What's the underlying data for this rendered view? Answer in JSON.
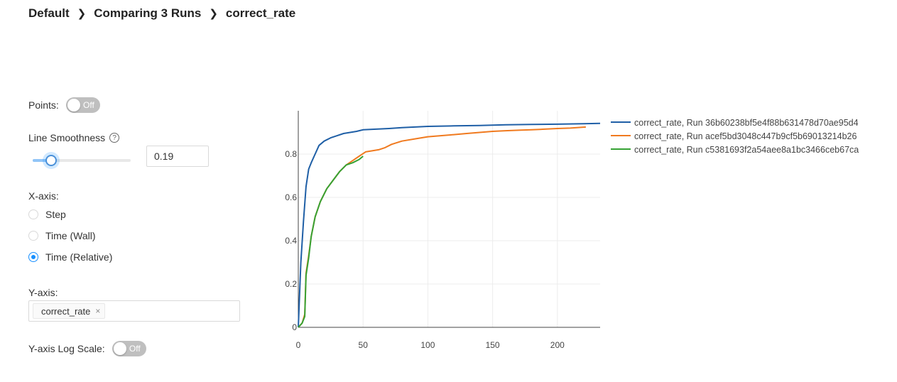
{
  "breadcrumb": {
    "items": [
      "Default",
      "Comparing 3 Runs",
      "correct_rate"
    ],
    "separator": ">"
  },
  "controls": {
    "points_label": "Points:",
    "points_toggle": "Off",
    "smoothness_label": "Line Smoothness",
    "smoothness_value": "0.19",
    "smoothness_fraction": 0.19,
    "xaxis_label": "X-axis:",
    "xaxis_options": [
      "Step",
      "Time (Wall)",
      "Time (Relative)"
    ],
    "xaxis_selected": "Time (Relative)",
    "yaxis_label": "Y-axis:",
    "yaxis_tag": "correct_rate",
    "yaxis_tag_close": "×",
    "logscale_label": "Y-axis Log Scale:",
    "logscale_toggle": "Off"
  },
  "icons": {
    "help": "?",
    "separator": "chevron-right-icon"
  },
  "colors": {
    "run1": "#1f5fa6",
    "run2": "#f07a1f",
    "run3": "#36a234",
    "accent": "#1890ff",
    "toggle_off": "#bfbfbf"
  },
  "chart_data": {
    "type": "line",
    "title": "",
    "xlabel": "",
    "ylabel": "",
    "xlim": [
      0,
      233
    ],
    "ylim": [
      0,
      1.0
    ],
    "x_ticks": [
      0,
      50,
      100,
      150,
      200
    ],
    "y_ticks": [
      0,
      0.2,
      0.4,
      0.6,
      0.8
    ],
    "y_tick_labels": [
      "0",
      "0.2",
      "0.4",
      "0.6",
      "0.8"
    ],
    "grid": true,
    "legend_position": "right",
    "series": [
      {
        "name": "correct_rate, Run 36b60238bf5e4f88b631478d70ae95d4",
        "color": "#1f5fa6",
        "x": [
          0,
          2,
          4,
          6,
          8,
          10,
          13,
          16,
          20,
          25,
          30,
          35,
          40,
          45,
          50,
          60,
          70,
          80,
          90,
          100,
          120,
          140,
          160,
          180,
          200,
          220,
          233
        ],
        "y": [
          0.0,
          0.3,
          0.49,
          0.65,
          0.73,
          0.76,
          0.8,
          0.84,
          0.86,
          0.875,
          0.885,
          0.895,
          0.9,
          0.905,
          0.912,
          0.915,
          0.918,
          0.922,
          0.925,
          0.928,
          0.93,
          0.932,
          0.935,
          0.937,
          0.938,
          0.94,
          0.942
        ]
      },
      {
        "name": "correct_rate, Run acef5bd3048c447b9cf5b69013214b26",
        "color": "#f07a1f",
        "x": [
          0,
          3,
          5,
          6,
          8,
          10,
          13,
          17,
          22,
          27,
          32,
          37,
          42,
          47,
          52,
          57,
          62,
          67,
          72,
          80,
          90,
          100,
          110,
          120,
          130,
          140,
          150,
          160,
          170,
          180,
          190,
          200,
          210,
          222
        ],
        "y": [
          0.0,
          0.02,
          0.06,
          0.25,
          0.33,
          0.42,
          0.51,
          0.58,
          0.64,
          0.68,
          0.72,
          0.75,
          0.77,
          0.79,
          0.81,
          0.815,
          0.82,
          0.83,
          0.845,
          0.86,
          0.87,
          0.88,
          0.885,
          0.89,
          0.895,
          0.9,
          0.905,
          0.908,
          0.91,
          0.912,
          0.915,
          0.918,
          0.92,
          0.925
        ]
      },
      {
        "name": "correct_rate, Run c5381693f2a54aee8a1bc3466ceb67ca",
        "color": "#36a234",
        "x": [
          0,
          3,
          5,
          6,
          8,
          10,
          13,
          17,
          22,
          27,
          32,
          37,
          42,
          47,
          50
        ],
        "y": [
          0.0,
          0.02,
          0.05,
          0.24,
          0.32,
          0.42,
          0.51,
          0.58,
          0.64,
          0.68,
          0.72,
          0.75,
          0.76,
          0.775,
          0.79
        ]
      }
    ]
  }
}
